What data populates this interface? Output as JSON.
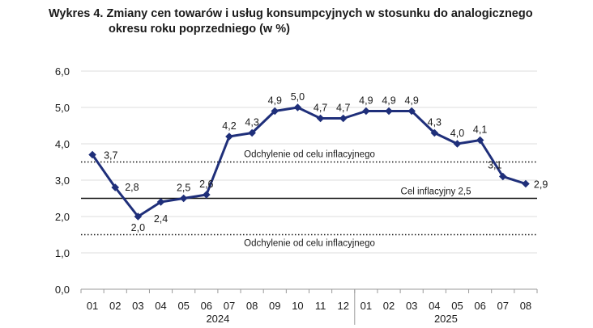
{
  "chart_data": {
    "type": "line",
    "title_line1": "Wykres 4. Zmiany cen towarów i usług konsumpcyjnych w stosunku do analogicznego",
    "title_line2": "okresu roku poprzedniego (w %)",
    "xlabel": "",
    "ylabel": "",
    "ylim": [
      0,
      6
    ],
    "yticks": [
      "0,0",
      "1,0",
      "2,0",
      "3,0",
      "4,0",
      "5,0",
      "6,0"
    ],
    "categories": [
      "01",
      "02",
      "03",
      "04",
      "05",
      "06",
      "07",
      "08",
      "09",
      "10",
      "11",
      "12",
      "01",
      "02",
      "03",
      "04",
      "05",
      "06",
      "07",
      "08"
    ],
    "year_groups": [
      {
        "label": "2024",
        "start": 0,
        "end": 11
      },
      {
        "label": "2025",
        "start": 12,
        "end": 19
      }
    ],
    "series": [
      {
        "values": [
          3.7,
          2.8,
          2.0,
          2.4,
          2.5,
          2.6,
          4.2,
          4.3,
          4.9,
          5.0,
          4.7,
          4.7,
          4.9,
          4.9,
          4.9,
          4.3,
          4.0,
          4.1,
          3.1,
          2.9
        ],
        "labels": [
          "3,7",
          "2,8",
          "2,0",
          "2,4",
          "2,5",
          "2,6",
          "4,2",
          "4,3",
          "4,9",
          "5,0",
          "4,7",
          "4,7",
          "4,9",
          "4,9",
          "4,9",
          "4,3",
          "4,0",
          "4,1",
          "3,1",
          "2,9"
        ],
        "color": "#1f2f7a"
      }
    ],
    "reference_lines": [
      {
        "value": 2.5,
        "label": "Cel inflacyjny 2,5",
        "style": "solid"
      },
      {
        "value": 3.5,
        "label": "Odchylenie od celu inflacyjnego",
        "style": "dotted"
      },
      {
        "value": 1.5,
        "label": "Odchylenie od celu inflacyjnego",
        "style": "dotted"
      }
    ],
    "grid": true,
    "legend": "none"
  }
}
